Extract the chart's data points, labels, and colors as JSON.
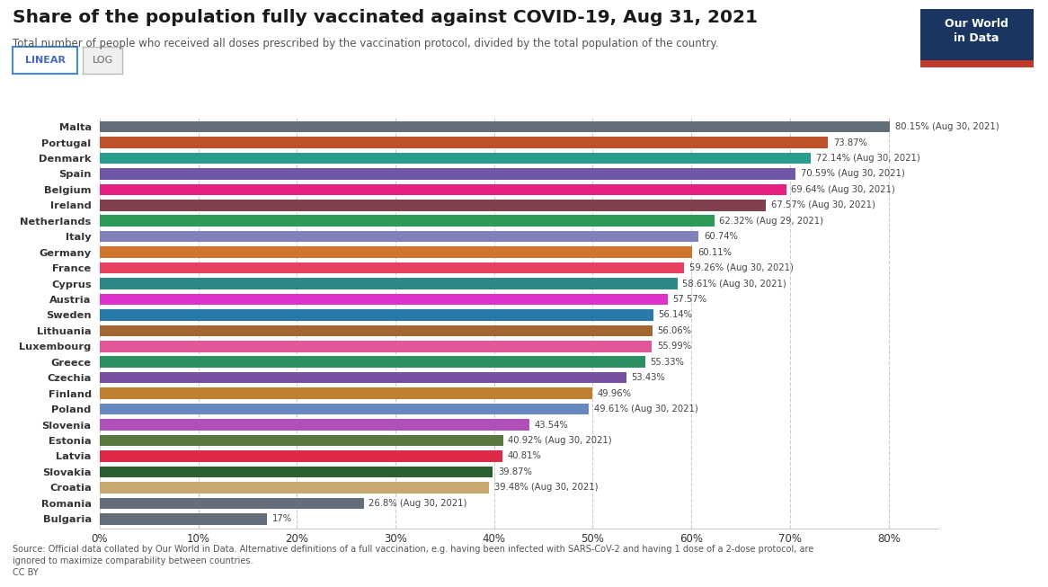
{
  "title": "Share of the population fully vaccinated against COVID-19, Aug 31, 2021",
  "subtitle": "Total number of people who received all doses prescribed by the vaccination protocol, divided by the total population of the country.",
  "source_text": "Source: Official data collated by Our World in Data. Alternative definitions of a full vaccination, e.g. having been infected with SARS-CoV-2 and having 1 dose of a 2-dose protocol, are\nignored to maximize comparability between countries.\nCC BY",
  "countries": [
    "Malta",
    "Portugal",
    "Denmark",
    "Spain",
    "Belgium",
    "Ireland",
    "Netherlands",
    "Italy",
    "Germany",
    "France",
    "Cyprus",
    "Austria",
    "Sweden",
    "Lithuania",
    "Luxembourg",
    "Greece",
    "Czechia",
    "Finland",
    "Poland",
    "Slovenia",
    "Estonia",
    "Latvia",
    "Slovakia",
    "Croatia",
    "Romania",
    "Bulgaria"
  ],
  "values": [
    80.15,
    73.87,
    72.14,
    70.59,
    69.64,
    67.57,
    62.32,
    60.74,
    60.11,
    59.26,
    58.61,
    57.57,
    56.14,
    56.06,
    55.99,
    55.33,
    53.43,
    49.96,
    49.61,
    43.54,
    40.92,
    40.81,
    39.87,
    39.48,
    26.8,
    17.0
  ],
  "labels": [
    "80.15% (Aug 30, 2021)",
    "73.87%",
    "72.14% (Aug 30, 2021)",
    "70.59% (Aug 30, 2021)",
    "69.64% (Aug 30, 2021)",
    "67.57% (Aug 30, 2021)",
    "62.32% (Aug 29, 2021)",
    "60.74%",
    "60.11%",
    "59.26% (Aug 30, 2021)",
    "58.61% (Aug 30, 2021)",
    "57.57%",
    "56.14%",
    "56.06%",
    "55.99%",
    "55.33%",
    "53.43%",
    "49.96%",
    "49.61% (Aug 30, 2021)",
    "43.54%",
    "40.92% (Aug 30, 2021)",
    "40.81%",
    "39.87%",
    "39.48% (Aug 30, 2021)",
    "26.8% (Aug 30, 2021)",
    "17%"
  ],
  "colors": [
    "#636e7b",
    "#c0522b",
    "#2a9d8f",
    "#7055a8",
    "#e52080",
    "#80404e",
    "#2e9a5a",
    "#8080bb",
    "#d07530",
    "#e84060",
    "#2e8888",
    "#e030cc",
    "#2878aa",
    "#a06830",
    "#e05898",
    "#2a9060",
    "#7850a0",
    "#c08030",
    "#6888c0",
    "#b050b8",
    "#587840",
    "#e02848",
    "#2a6030",
    "#c8a870",
    "#636e7b",
    "#636e7b"
  ],
  "xlim": [
    0,
    85
  ],
  "xticks": [
    0,
    10,
    20,
    30,
    40,
    50,
    60,
    70,
    80
  ],
  "xticklabels": [
    "0%",
    "10%",
    "20%",
    "30%",
    "40%",
    "50%",
    "60%",
    "70%",
    "80%"
  ],
  "background_color": "#ffffff",
  "logo_bg": "#1a3560",
  "logo_text": "Our World\nin Data",
  "logo_red": "#c0392b"
}
